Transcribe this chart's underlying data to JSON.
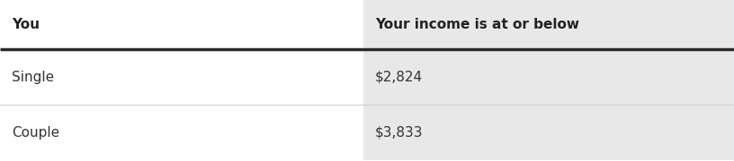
{
  "headers": [
    "You",
    "Your income is at or below"
  ],
  "rows": [
    [
      "Single",
      "$2,824"
    ],
    [
      "Couple",
      "$3,833"
    ]
  ],
  "col_split": 0.495,
  "header_bg_left": "#ffffff",
  "header_bg_right": "#e8e8e8",
  "row_bg_left": "#ffffff",
  "row_bg_right": "#e8e8e8",
  "header_line_color": "#2a2a2a",
  "row_divider_color": "#cccccc",
  "header_text_color": "#222222",
  "data_text_color": "#333333",
  "header_fontsize": 11,
  "data_fontsize": 11,
  "fig_width": 8.16,
  "fig_height": 1.8,
  "dpi": 100
}
